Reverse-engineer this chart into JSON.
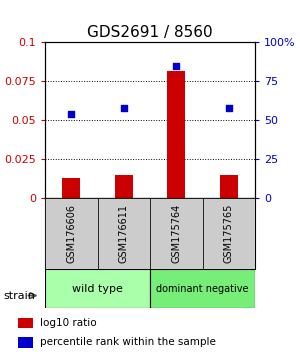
{
  "title": "GDS2691 / 8560",
  "samples": [
    "GSM176606",
    "GSM176611",
    "GSM175764",
    "GSM175765"
  ],
  "log10_ratio": [
    0.013,
    0.015,
    0.082,
    0.015
  ],
  "percentile_rank_pct": [
    54,
    58,
    85,
    58
  ],
  "bar_color": "#cc0000",
  "dot_color": "#0000cc",
  "ylim_left": [
    0,
    0.1
  ],
  "ylim_right": [
    0,
    100
  ],
  "yticks_left": [
    0,
    0.025,
    0.05,
    0.075,
    0.1
  ],
  "ytick_labels_left": [
    "0",
    "0.025",
    "0.05",
    "0.075",
    "0.1"
  ],
  "yticks_right": [
    0,
    25,
    50,
    75,
    100
  ],
  "ytick_labels_right": [
    "0",
    "25",
    "50",
    "75",
    "100%"
  ],
  "groups": [
    {
      "label": "wild type",
      "samples": [
        0,
        1
      ],
      "color": "#aaffaa"
    },
    {
      "label": "dominant negative",
      "samples": [
        2,
        3
      ],
      "color": "#77ee77"
    }
  ],
  "group_row_label": "strain",
  "legend_items": [
    {
      "color": "#cc0000",
      "label": "log10 ratio"
    },
    {
      "color": "#0000cc",
      "label": "percentile rank within the sample"
    }
  ],
  "background_color": "#ffffff",
  "bar_width": 0.35,
  "title_fontsize": 11,
  "tick_fontsize": 8,
  "sample_box_color": "#cccccc",
  "sample_text_color": "#000000"
}
